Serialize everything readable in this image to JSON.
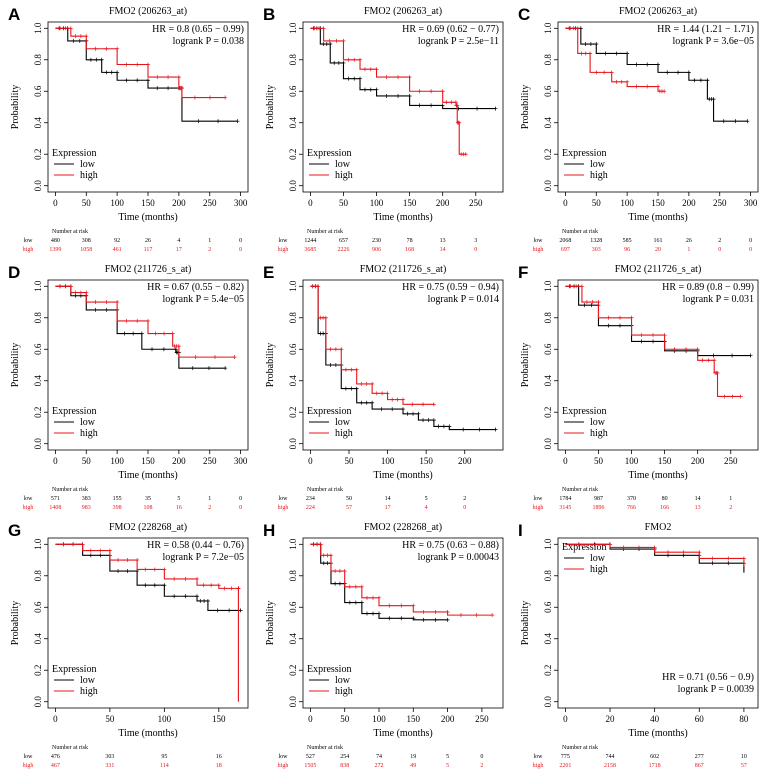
{
  "colors": {
    "low": "#000000",
    "high": "#e8141b"
  },
  "legend": {
    "title": "Expression",
    "low": "low",
    "high": "high"
  },
  "xlabel": "Time (months)",
  "ylabel": "Probability",
  "risk_header": "Number at risk",
  "chart_data": [
    {
      "type": "line",
      "letter": "A",
      "title": "FMO2 (206263_at)",
      "hr": "HR = 0.8 (0.65 − 0.99)",
      "logrank": "logrank P = 0.038",
      "xlim": [
        0,
        300
      ],
      "xticks": [
        0,
        50,
        100,
        150,
        200,
        250,
        300
      ],
      "yticks": [
        "0.0",
        "0.2",
        "0.4",
        "0.6",
        "0.8",
        "1.0"
      ],
      "legend_pos": "bottom-left",
      "series": [
        {
          "name": "low",
          "points": [
            [
              0,
              1
            ],
            [
              20,
              0.92
            ],
            [
              50,
              0.8
            ],
            [
              75,
              0.72
            ],
            [
              100,
              0.67
            ],
            [
              150,
              0.62
            ],
            [
              200,
              0.62
            ],
            [
              205,
              0.41
            ],
            [
              295,
              0.41
            ]
          ],
          "at_risk": [
            "480",
            "308",
            "92",
            "26",
            "4",
            "1",
            "0"
          ]
        },
        {
          "name": "high",
          "points": [
            [
              0,
              1
            ],
            [
              25,
              0.95
            ],
            [
              50,
              0.87
            ],
            [
              100,
              0.77
            ],
            [
              150,
              0.69
            ],
            [
              200,
              0.62
            ],
            [
              205,
              0.56
            ],
            [
              275,
              0.56
            ]
          ],
          "at_risk": [
            "1399",
            "1058",
            "461",
            "117",
            "17",
            "2",
            "0"
          ]
        }
      ]
    },
    {
      "type": "line",
      "letter": "B",
      "title": "FMO2 (206263_at)",
      "hr": "HR = 0.69 (0.62 − 0.77)",
      "logrank": "logrank P = 2.5e−11",
      "xlim": [
        0,
        280
      ],
      "xticks": [
        0,
        50,
        100,
        150,
        200,
        250
      ],
      "yticks": [
        "0.0",
        "0.2",
        "0.4",
        "0.6",
        "0.8",
        "1.0"
      ],
      "legend_pos": "bottom-left",
      "series": [
        {
          "name": "low",
          "points": [
            [
              0,
              1
            ],
            [
              15,
              0.9
            ],
            [
              30,
              0.78
            ],
            [
              50,
              0.68
            ],
            [
              75,
              0.61
            ],
            [
              100,
              0.57
            ],
            [
              150,
              0.51
            ],
            [
              200,
              0.49
            ],
            [
              280,
              0.49
            ]
          ],
          "at_risk": [
            "1244",
            "657",
            "230",
            "78",
            "13",
            "3"
          ]
        },
        {
          "name": "high",
          "points": [
            [
              0,
              1
            ],
            [
              20,
              0.92
            ],
            [
              50,
              0.8
            ],
            [
              75,
              0.74
            ],
            [
              100,
              0.69
            ],
            [
              150,
              0.6
            ],
            [
              200,
              0.53
            ],
            [
              220,
              0.51
            ],
            [
              222,
              0.4
            ],
            [
              225,
              0.2
            ],
            [
              235,
              0.2
            ]
          ],
          "at_risk": [
            "3685",
            "2226",
            "906",
            "168",
            "14",
            "0"
          ]
        }
      ]
    },
    {
      "type": "line",
      "letter": "C",
      "title": "FMO2 (206263_at)",
      "hr": "HR = 1.44 (1.21 − 1.71)",
      "logrank": "logrank P = 3.6e−05",
      "xlim": [
        0,
        300
      ],
      "xticks": [
        0,
        50,
        100,
        150,
        200,
        250,
        300
      ],
      "yticks": [
        "0.0",
        "0.2",
        "0.4",
        "0.6",
        "0.8",
        "1.0"
      ],
      "legend_pos": "bottom-left",
      "series": [
        {
          "name": "low",
          "points": [
            [
              0,
              1
            ],
            [
              25,
              0.9
            ],
            [
              50,
              0.84
            ],
            [
              100,
              0.77
            ],
            [
              150,
              0.72
            ],
            [
              200,
              0.67
            ],
            [
              230,
              0.55
            ],
            [
              240,
              0.41
            ],
            [
              295,
              0.41
            ]
          ],
          "at_risk": [
            "2068",
            "1328",
            "585",
            "161",
            "26",
            "2",
            "0"
          ]
        },
        {
          "name": "high",
          "points": [
            [
              0,
              1
            ],
            [
              20,
              0.84
            ],
            [
              40,
              0.72
            ],
            [
              75,
              0.66
            ],
            [
              100,
              0.63
            ],
            [
              150,
              0.6
            ],
            [
              160,
              0.6
            ]
          ],
          "at_risk": [
            "697",
            "303",
            "96",
            "20",
            "1",
            "0",
            "0"
          ]
        }
      ]
    },
    {
      "type": "line",
      "letter": "D",
      "title": "FMO2 (211726_s_at)",
      "hr": "HR = 0.67 (0.55 − 0.82)",
      "logrank": "logrank P = 5.4e−05",
      "xlim": [
        0,
        300
      ],
      "xticks": [
        0,
        50,
        100,
        150,
        200,
        250,
        300
      ],
      "yticks": [
        "0.0",
        "0.2",
        "0.4",
        "0.6",
        "0.8",
        "1.0"
      ],
      "legend_pos": "bottom-left",
      "series": [
        {
          "name": "low",
          "points": [
            [
              0,
              1
            ],
            [
              25,
              0.94
            ],
            [
              50,
              0.85
            ],
            [
              100,
              0.7
            ],
            [
              140,
              0.6
            ],
            [
              195,
              0.58
            ],
            [
              200,
              0.48
            ],
            [
              275,
              0.48
            ]
          ],
          "at_risk": [
            "571",
            "383",
            "155",
            "35",
            "5",
            "1",
            "0"
          ]
        },
        {
          "name": "high",
          "points": [
            [
              0,
              1
            ],
            [
              25,
              0.96
            ],
            [
              50,
              0.9
            ],
            [
              100,
              0.78
            ],
            [
              150,
              0.7
            ],
            [
              190,
              0.62
            ],
            [
              200,
              0.55
            ],
            [
              290,
              0.55
            ]
          ],
          "at_risk": [
            "1408",
            "983",
            "398",
            "108",
            "16",
            "2",
            "0"
          ]
        }
      ]
    },
    {
      "type": "line",
      "letter": "E",
      "title": "FMO2 (211726_s_at)",
      "hr": "HR = 0.75 (0.59 − 0.94)",
      "logrank": "logrank P = 0.014",
      "xlim": [
        0,
        240
      ],
      "xticks": [
        0,
        50,
        100,
        150,
        200
      ],
      "yticks": [
        "0.0",
        "0.2",
        "0.4",
        "0.6",
        "0.8",
        "1.0"
      ],
      "legend_pos": "bottom-left",
      "series": [
        {
          "name": "low",
          "points": [
            [
              0,
              1
            ],
            [
              10,
              0.7
            ],
            [
              20,
              0.5
            ],
            [
              40,
              0.35
            ],
            [
              60,
              0.26
            ],
            [
              80,
              0.22
            ],
            [
              120,
              0.19
            ],
            [
              140,
              0.15
            ],
            [
              160,
              0.11
            ],
            [
              180,
              0.09
            ],
            [
              240,
              0.09
            ]
          ],
          "at_risk": [
            "234",
            "50",
            "14",
            "5",
            "2"
          ]
        },
        {
          "name": "high",
          "points": [
            [
              0,
              1
            ],
            [
              10,
              0.8
            ],
            [
              20,
              0.6
            ],
            [
              40,
              0.47
            ],
            [
              60,
              0.38
            ],
            [
              80,
              0.32
            ],
            [
              100,
              0.28
            ],
            [
              120,
              0.25
            ],
            [
              160,
              0.25
            ]
          ],
          "at_risk": [
            "224",
            "57",
            "17",
            "4",
            "0"
          ]
        }
      ]
    },
    {
      "type": "line",
      "letter": "F",
      "title": "FMO2 (211726_s_at)",
      "hr": "HR = 0.89 (0.8 − 0.99)",
      "logrank": "logrank P = 0.031",
      "xlim": [
        0,
        280
      ],
      "xticks": [
        0,
        50,
        100,
        150,
        200,
        250
      ],
      "yticks": [
        "0.0",
        "0.2",
        "0.4",
        "0.6",
        "0.8",
        "1.0"
      ],
      "legend_pos": "bottom-left",
      "series": [
        {
          "name": "low",
          "points": [
            [
              0,
              1
            ],
            [
              20,
              0.88
            ],
            [
              50,
              0.75
            ],
            [
              100,
              0.65
            ],
            [
              150,
              0.59
            ],
            [
              200,
              0.56
            ],
            [
              280,
              0.56
            ]
          ],
          "at_risk": [
            "1784",
            "987",
            "370",
            "80",
            "14",
            "1"
          ]
        },
        {
          "name": "high",
          "points": [
            [
              0,
              1
            ],
            [
              25,
              0.9
            ],
            [
              50,
              0.8
            ],
            [
              100,
              0.69
            ],
            [
              150,
              0.6
            ],
            [
              200,
              0.53
            ],
            [
              225,
              0.45
            ],
            [
              230,
              0.3
            ],
            [
              265,
              0.3
            ]
          ],
          "at_risk": [
            "3145",
            "1896",
            "766",
            "166",
            "13",
            "2"
          ]
        }
      ]
    },
    {
      "type": "line",
      "letter": "G",
      "title": "FMO2 (228268_at)",
      "hr": "HR = 0.58 (0.44 − 0.76)",
      "logrank": "logrank P = 7.2e−05",
      "xlim": [
        0,
        170
      ],
      "xticks": [
        0,
        50,
        100,
        150
      ],
      "yticks": [
        "0.0",
        "0.2",
        "0.4",
        "0.6",
        "0.8",
        "1.0"
      ],
      "legend_pos": "bottom-left",
      "series": [
        {
          "name": "low",
          "points": [
            [
              0,
              1
            ],
            [
              25,
              0.93
            ],
            [
              50,
              0.83
            ],
            [
              75,
              0.74
            ],
            [
              100,
              0.67
            ],
            [
              130,
              0.64
            ],
            [
              140,
              0.58
            ],
            [
              170,
              0.58
            ]
          ],
          "at_risk": [
            "476",
            "303",
            "95",
            "16"
          ]
        },
        {
          "name": "high",
          "points": [
            [
              0,
              1
            ],
            [
              25,
              0.96
            ],
            [
              50,
              0.9
            ],
            [
              75,
              0.84
            ],
            [
              100,
              0.78
            ],
            [
              130,
              0.74
            ],
            [
              150,
              0.72
            ],
            [
              168,
              0.72
            ],
            [
              168,
              0
            ]
          ],
          "at_risk": [
            "467",
            "331",
            "114",
            "18"
          ]
        }
      ]
    },
    {
      "type": "line",
      "letter": "H",
      "title": "FMO2 (228268_at)",
      "hr": "HR = 0.75 (0.63 − 0.88)",
      "logrank": "logrank P = 0.00043",
      "xlim": [
        0,
        270
      ],
      "xticks": [
        0,
        50,
        100,
        150,
        200,
        250
      ],
      "yticks": [
        "0.0",
        "0.2",
        "0.4",
        "0.6",
        "0.8",
        "1.0"
      ],
      "legend_pos": "bottom-left",
      "series": [
        {
          "name": "low",
          "points": [
            [
              0,
              1
            ],
            [
              15,
              0.88
            ],
            [
              30,
              0.75
            ],
            [
              50,
              0.63
            ],
            [
              75,
              0.56
            ],
            [
              100,
              0.53
            ],
            [
              150,
              0.52
            ],
            [
              200,
              0.52
            ]
          ],
          "at_risk": [
            "527",
            "254",
            "74",
            "19",
            "5",
            "0"
          ]
        },
        {
          "name": "high",
          "points": [
            [
              0,
              1
            ],
            [
              15,
              0.93
            ],
            [
              30,
              0.83
            ],
            [
              50,
              0.73
            ],
            [
              75,
              0.66
            ],
            [
              100,
              0.61
            ],
            [
              150,
              0.57
            ],
            [
              200,
              0.55
            ],
            [
              265,
              0.55
            ]
          ],
          "at_risk": [
            "1505",
            "838",
            "272",
            "49",
            "5",
            "2"
          ]
        }
      ]
    },
    {
      "type": "line",
      "letter": "I",
      "title": "FMO2",
      "hr": "HR = 0.71 (0.56 − 0.9)",
      "logrank": "logrank P = 0.0039",
      "xlim": [
        0,
        83
      ],
      "xticks": [
        0,
        20,
        40,
        60,
        80
      ],
      "yticks": [
        "0.0",
        "0.2",
        "0.4",
        "0.6",
        "0.8",
        "1.0"
      ],
      "legend_pos": "top-left",
      "series": [
        {
          "name": "low",
          "points": [
            [
              0,
              1
            ],
            [
              20,
              0.97
            ],
            [
              40,
              0.93
            ],
            [
              60,
              0.88
            ],
            [
              80,
              0.82
            ]
          ],
          "at_risk": [
            "775",
            "744",
            "602",
            "277",
            "10"
          ]
        },
        {
          "name": "high",
          "points": [
            [
              0,
              1
            ],
            [
              20,
              0.98
            ],
            [
              40,
              0.95
            ],
            [
              60,
              0.91
            ],
            [
              80,
              0.86
            ]
          ],
          "at_risk": [
            "2201",
            "2158",
            "1718",
            "867",
            "57"
          ]
        }
      ]
    }
  ]
}
